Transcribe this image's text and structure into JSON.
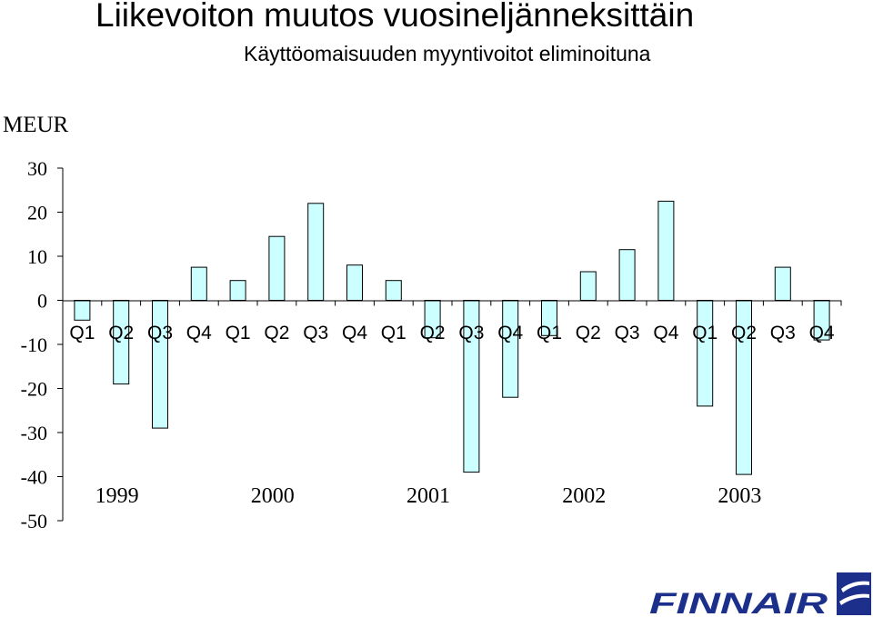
{
  "title": "Liikevoiton muutos vuosineljänneksittäin",
  "subtitle": "Käyttöomaisuuden myyntivoitot eliminoituna",
  "brand": {
    "name": "FINNAIR",
    "color": "#1c2f8a"
  },
  "chart_data": {
    "type": "bar",
    "ylabel": "MEUR",
    "ylim": [
      -50,
      30
    ],
    "yticks": [
      30,
      20,
      10,
      0,
      -10,
      -20,
      -30,
      -40,
      -50
    ],
    "bar_color": "#ccffff",
    "categories": [
      "Q1",
      "Q2",
      "Q3",
      "Q4",
      "Q1",
      "Q2",
      "Q3",
      "Q4",
      "Q1",
      "Q2",
      "Q3",
      "Q4",
      "Q1",
      "Q2",
      "Q3",
      "Q4",
      "Q1",
      "Q2",
      "Q3",
      "Q4"
    ],
    "values": [
      -4.5,
      -19,
      -29,
      7.5,
      4.5,
      14.5,
      22,
      8,
      4.5,
      -8.5,
      -39,
      -22,
      -8,
      6.5,
      11.5,
      22.5,
      -24,
      -39.5,
      7.5,
      -9
    ],
    "years": [
      "1999",
      "2000",
      "2001",
      "2002",
      "2003"
    ]
  }
}
